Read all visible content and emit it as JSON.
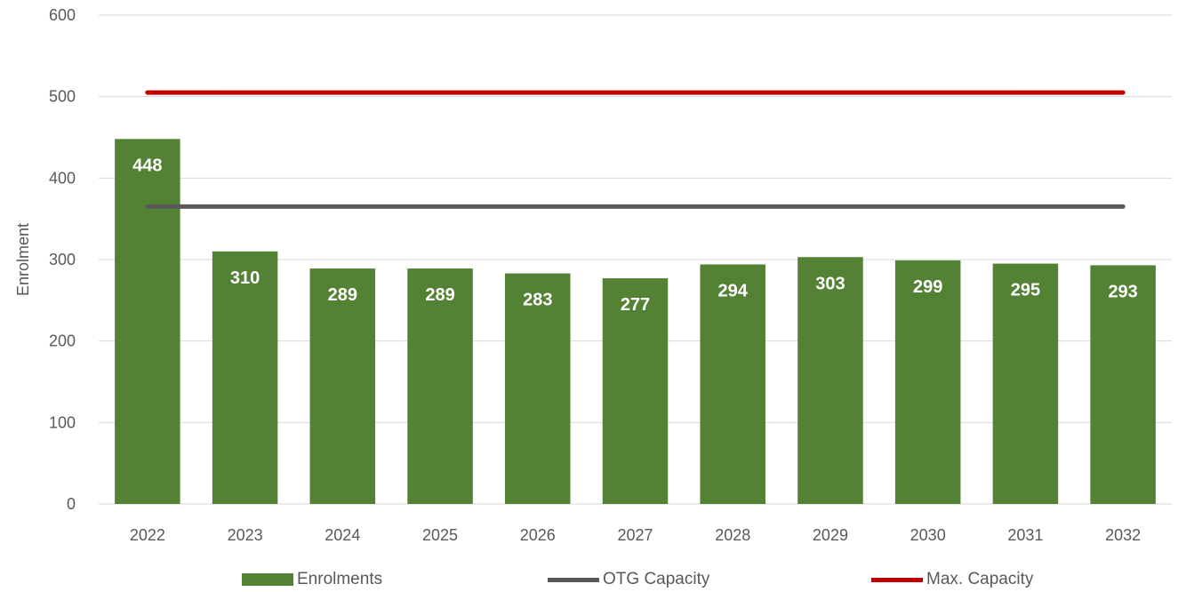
{
  "chart_data": {
    "type": "bar",
    "categories": [
      "2022",
      "2023",
      "2024",
      "2025",
      "2026",
      "2027",
      "2028",
      "2029",
      "2030",
      "2031",
      "2032"
    ],
    "series": [
      {
        "name": "Enrolments",
        "type": "bar",
        "color": "#548235",
        "values": [
          448,
          310,
          289,
          289,
          283,
          277,
          294,
          303,
          299,
          295,
          293
        ]
      },
      {
        "name": "OTG Capacity",
        "type": "line",
        "color": "#595959",
        "values": [
          365,
          365,
          365,
          365,
          365,
          365,
          365,
          365,
          365,
          365,
          365
        ]
      },
      {
        "name": "Max. Capacity",
        "type": "line",
        "color": "#c00000",
        "values": [
          505,
          505,
          505,
          505,
          505,
          505,
          505,
          505,
          505,
          505,
          505
        ]
      }
    ],
    "title": "",
    "xlabel": "",
    "ylabel": "Enrolment",
    "ylim": [
      0,
      600
    ],
    "yticks": [
      0,
      100,
      200,
      300,
      400,
      500,
      600
    ],
    "grid": true,
    "legend_position": "bottom"
  },
  "colors": {
    "gridline": "#d9d9d9",
    "axis_text": "#595959",
    "bar_label": "#ffffff"
  }
}
